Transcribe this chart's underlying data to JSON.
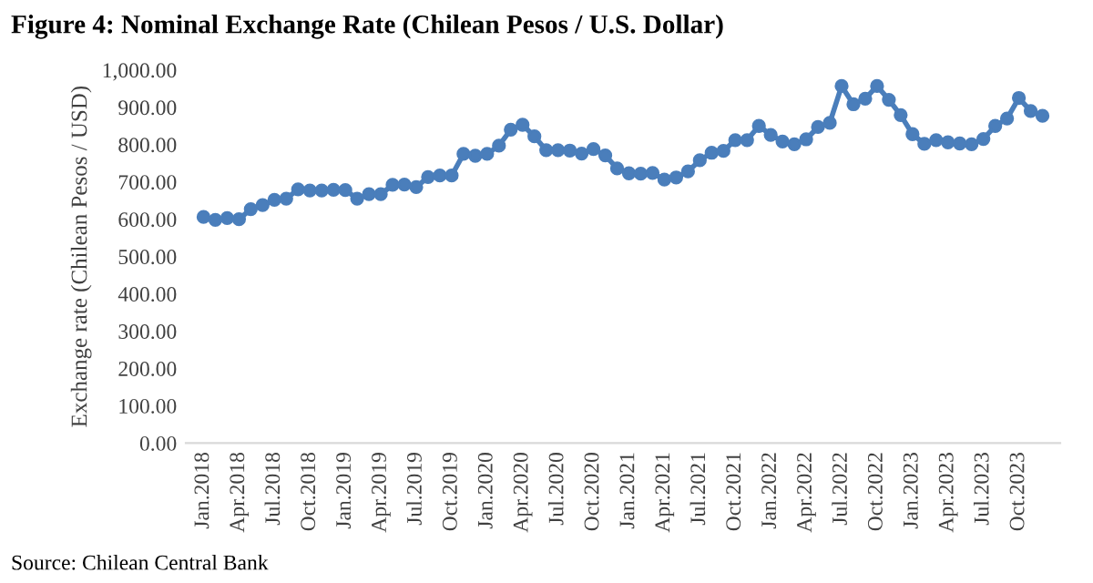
{
  "chart_data": {
    "type": "line",
    "title": "Figure 4: Nominal Exchange Rate (Chilean Pesos / U.S. Dollar)",
    "ylabel": "Exchange rate (Chilean Pesos / USD)",
    "annotations": [
      "Source: Chilean Central Bank"
    ],
    "categories": [
      "Jan.2018",
      null,
      null,
      "Apr.2018",
      null,
      null,
      "Jul.2018",
      null,
      null,
      "Oct.2018",
      null,
      null,
      "Jan.2019",
      null,
      null,
      "Apr.2019",
      null,
      null,
      "Jul.2019",
      null,
      null,
      "Oct.2019",
      null,
      null,
      "Jan.2020",
      null,
      null,
      "Apr.2020",
      null,
      null,
      "Jul.2020",
      null,
      null,
      "Oct.2020",
      null,
      null,
      "Jan.2021",
      null,
      null,
      "Apr.2021",
      null,
      null,
      "Jul.2021",
      null,
      null,
      "Oct.2021",
      null,
      null,
      "Jan.2022",
      null,
      null,
      "Apr.2022",
      null,
      null,
      "Jul.2022",
      null,
      null,
      "Oct.2022",
      null,
      null,
      "Jan.2023",
      null,
      null,
      "Apr.2023",
      null,
      null,
      "Jul.2023",
      null,
      null,
      "Oct.2023",
      null,
      null
    ],
    "series": [
      {
        "color": "#4a7ebb",
        "values": [
          606,
          598,
          603,
          600,
          627,
          638,
          652,
          655,
          680,
          677,
          677,
          679,
          678,
          655,
          667,
          667,
          692,
          693,
          686,
          713,
          717,
          717,
          775,
          770,
          775,
          797,
          840,
          853,
          822,
          785,
          785,
          784,
          776,
          788,
          771,
          736,
          723,
          722,
          724,
          706,
          712,
          728,
          758,
          778,
          783,
          812,
          812,
          850,
          826,
          808,
          801,
          814,
          847,
          858,
          957,
          908,
          923,
          957,
          920,
          879,
          828,
          802,
          812,
          806,
          803,
          801,
          815,
          850,
          870,
          925,
          890,
          877
        ]
      }
    ],
    "ylim": [
      0,
      1000
    ],
    "yticks": [
      {
        "value": 0,
        "label": "0.00"
      },
      {
        "value": 100,
        "label": "100.00"
      },
      {
        "value": 200,
        "label": "200.00"
      },
      {
        "value": 300,
        "label": "300.00"
      },
      {
        "value": 400,
        "label": "400.00"
      },
      {
        "value": 500,
        "label": "500.00"
      },
      {
        "value": 600,
        "label": "600.00"
      },
      {
        "value": 700,
        "label": "700.00"
      },
      {
        "value": 800,
        "label": "800.00"
      },
      {
        "value": 900,
        "label": "900.00"
      },
      {
        "value": 1000,
        "label": "1,000.00"
      }
    ],
    "grid": false,
    "legend": false,
    "marker": "circle",
    "line_style": "solid"
  }
}
